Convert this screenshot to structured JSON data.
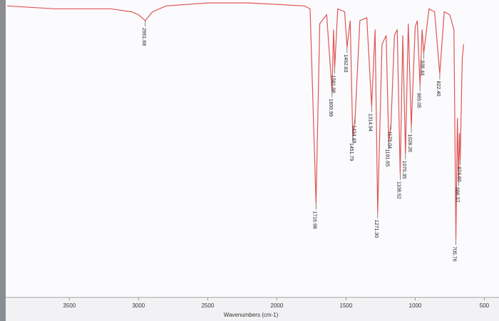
{
  "chart_data": {
    "type": "line",
    "x_label": "Wavenumbers (cm-1)",
    "xlim": [
      3950,
      420
    ],
    "ylim": [
      0,
      100
    ],
    "xticks": [
      3500,
      3000,
      2500,
      2000,
      1500,
      1000,
      500
    ],
    "color": "#e05555",
    "x": [
      3950,
      3600,
      3200,
      3050,
      3000,
      2951.68,
      2900,
      2800,
      2500,
      2200,
      2000,
      1800,
      1760,
      1716.98,
      1690,
      1640,
      1600.99,
      1590,
      1581.88,
      1560,
      1510,
      1492.83,
      1470,
      1451.79,
      1434.49,
      1400,
      1350,
      1314.94,
      1290,
      1271.3,
      1240,
      1210,
      1191.65,
      1175.04,
      1150,
      1130,
      1108.52,
      1090,
      1070.35,
      1050,
      1028.26,
      1000,
      985,
      965.05,
      950,
      938.44,
      900,
      860,
      822.4,
      790,
      750,
      720,
      705.76,
      695,
      686.57,
      680,
      674.6,
      660,
      650
    ],
    "y": [
      98,
      97,
      97,
      96,
      95,
      93,
      96,
      98,
      99,
      99,
      98.5,
      98,
      97,
      31,
      92,
      95,
      69,
      90,
      77,
      97,
      96,
      84,
      93,
      54,
      60,
      93,
      94,
      64,
      90,
      28,
      85,
      88,
      52,
      58,
      88,
      90,
      41,
      88,
      48,
      92,
      57,
      91,
      93,
      71,
      90,
      82,
      97,
      96,
      75,
      96,
      95,
      90,
      19,
      60,
      39,
      55,
      46,
      80,
      85
    ],
    "peaks": {
      "x": [
        2951.68,
        1716.98,
        1600.99,
        1581.88,
        1492.83,
        1451.79,
        1434.49,
        1314.94,
        1271.3,
        1191.65,
        1175.04,
        1108.52,
        1070.35,
        1028.26,
        965.05,
        938.44,
        822.4,
        705.76,
        686.57,
        674.6
      ],
      "y": [
        93,
        31,
        69,
        77,
        84,
        54,
        60,
        64,
        28,
        52,
        58,
        41,
        48,
        57,
        71,
        82,
        75,
        19,
        39,
        46
      ],
      "labels": [
        "2951.68",
        "1716.98",
        "1600.99",
        "1581.88",
        "1492.83",
        "1451.79",
        "1434.49",
        "1314.94",
        "1271.30",
        "1191.65",
        "1175.04",
        "1108.52",
        "1070.35",
        "1028.26",
        "965.05",
        "938.44",
        "822.40",
        "705.76",
        "686.57",
        "674.60"
      ]
    }
  }
}
